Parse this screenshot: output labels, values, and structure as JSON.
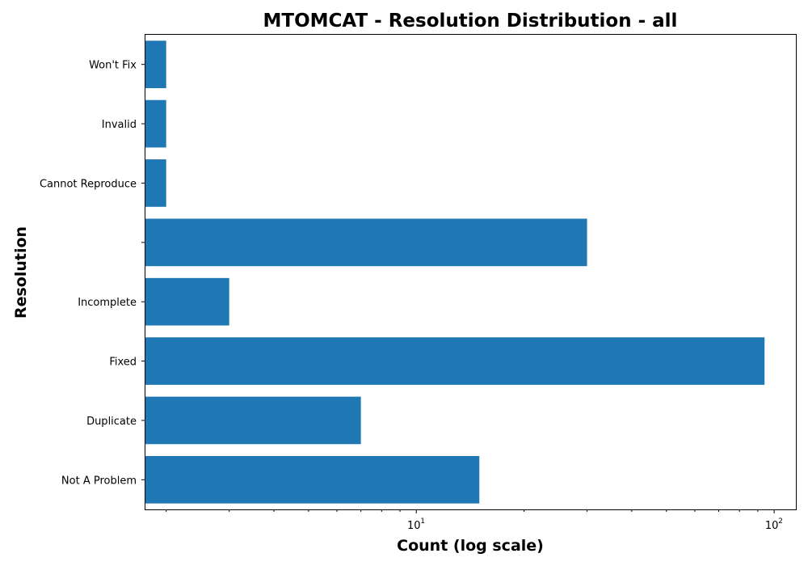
{
  "chart_data": {
    "type": "bar",
    "orientation": "horizontal",
    "title": "MTOMCAT - Resolution Distribution - all",
    "xlabel": "Count (log scale)",
    "ylabel": "Resolution",
    "x_scale": "log",
    "xlim": [
      1.75,
      115
    ],
    "x_major_ticks": [
      {
        "base": "10",
        "exp": "1",
        "value": 10
      },
      {
        "base": "10",
        "exp": "2",
        "value": 100
      }
    ],
    "categories": [
      "Not A Problem",
      "Duplicate",
      "Fixed",
      "Incomplete",
      "",
      "Cannot Reproduce",
      "Invalid",
      "Won't Fix"
    ],
    "values": [
      15,
      7,
      94,
      3,
      30,
      2,
      2,
      2
    ],
    "bar_color": "#1f77b4",
    "grid": false,
    "legend": "none"
  }
}
